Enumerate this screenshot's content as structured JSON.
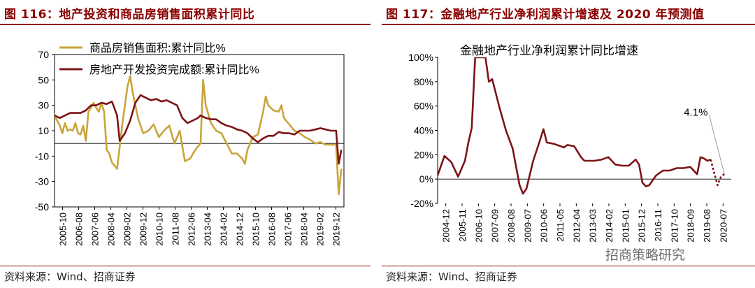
{
  "panel1": {
    "title": "图 116：地产投资和商品房销售面积累计同比",
    "source": "资料来源：Wind、招商证券"
  },
  "panel2": {
    "title": "图 117：金融地产行业净利润累计增速及 2020 年预测值",
    "source": "资料来源：Wind、招商证券",
    "watermark": "招商策略研究"
  },
  "colors": {
    "gold": "#c9a43a",
    "darkred": "#7b1418",
    "title": "#8b0000"
  },
  "chart_data": [
    {
      "type": "line",
      "title": "",
      "ylim": [
        -50,
        70
      ],
      "yticks": [
        -50,
        -30,
        -10,
        10,
        30,
        50,
        70
      ],
      "xticks": [
        "2005-10",
        "2006-08",
        "2007-06",
        "2008-04",
        "2009-02",
        "2009-12",
        "2010-10",
        "2011-08",
        "2012-06",
        "2013-04",
        "2014-02",
        "2014-12",
        "2015-10",
        "2016-08",
        "2017-06",
        "2018-04",
        "2019-02",
        "2019-12"
      ],
      "legend": {
        "placement": "top-left"
      },
      "series": [
        {
          "name": "商品房销售面积:累计同比%",
          "color": "gold",
          "values": [
            [
              0,
              22
            ],
            [
              2,
              14
            ],
            [
              3,
              8
            ],
            [
              4,
              16
            ],
            [
              5,
              10
            ],
            [
              6,
              11
            ],
            [
              7,
              10
            ],
            [
              8,
              16
            ],
            [
              9,
              8
            ],
            [
              10,
              7
            ],
            [
              11,
              14
            ],
            [
              12,
              2
            ],
            [
              13,
              25
            ],
            [
              14,
              28
            ],
            [
              15,
              32
            ],
            [
              16,
              28
            ],
            [
              17,
              25
            ],
            [
              18,
              32
            ],
            [
              19,
              25
            ],
            [
              20,
              -5
            ],
            [
              21,
              -8
            ],
            [
              22,
              -15
            ],
            [
              24,
              -20
            ],
            [
              26,
              15
            ],
            [
              28,
              45
            ],
            [
              29,
              53
            ],
            [
              30,
              40
            ],
            [
              32,
              20
            ],
            [
              34,
              8
            ],
            [
              36,
              10
            ],
            [
              38,
              15
            ],
            [
              40,
              5
            ],
            [
              42,
              10
            ],
            [
              44,
              14
            ],
            [
              46,
              0
            ],
            [
              48,
              10
            ],
            [
              50,
              -14
            ],
            [
              52,
              -12
            ],
            [
              54,
              -5
            ],
            [
              56,
              0
            ],
            [
              57,
              50
            ],
            [
              58,
              30
            ],
            [
              60,
              16
            ],
            [
              62,
              10
            ],
            [
              64,
              8
            ],
            [
              66,
              0
            ],
            [
              68,
              -8
            ],
            [
              70,
              -8
            ],
            [
              72,
              -12
            ],
            [
              73,
              -16
            ],
            [
              74,
              -5
            ],
            [
              76,
              5
            ],
            [
              78,
              7
            ],
            [
              80,
              25
            ],
            [
              81,
              37
            ],
            [
              82,
              30
            ],
            [
              84,
              26
            ],
            [
              86,
              25
            ],
            [
              87,
              30
            ],
            [
              88,
              20
            ],
            [
              90,
              15
            ],
            [
              92,
              10
            ],
            [
              94,
              8
            ],
            [
              96,
              5
            ],
            [
              98,
              3
            ],
            [
              100,
              0
            ],
            [
              102,
              1
            ],
            [
              104,
              -1
            ],
            [
              106,
              -1
            ],
            [
              108,
              -1
            ],
            [
              109,
              -40
            ],
            [
              110,
              -20
            ]
          ]
        },
        {
          "name": "房地产开发投资完成额:累计同比%",
          "color": "darkred",
          "values": [
            [
              0,
              22
            ],
            [
              2,
              20
            ],
            [
              4,
              22
            ],
            [
              6,
              24
            ],
            [
              8,
              24
            ],
            [
              10,
              24
            ],
            [
              12,
              26
            ],
            [
              14,
              30
            ],
            [
              16,
              30
            ],
            [
              18,
              32
            ],
            [
              20,
              31
            ],
            [
              22,
              33
            ],
            [
              24,
              22
            ],
            [
              25,
              2
            ],
            [
              27,
              8
            ],
            [
              29,
              18
            ],
            [
              31,
              32
            ],
            [
              33,
              38
            ],
            [
              35,
              36
            ],
            [
              37,
              34
            ],
            [
              39,
              35
            ],
            [
              41,
              33
            ],
            [
              43,
              34
            ],
            [
              45,
              32
            ],
            [
              47,
              30
            ],
            [
              49,
              20
            ],
            [
              51,
              16
            ],
            [
              53,
              18
            ],
            [
              55,
              20
            ],
            [
              56,
              22
            ],
            [
              58,
              20
            ],
            [
              60,
              19
            ],
            [
              62,
              19
            ],
            [
              64,
              16
            ],
            [
              66,
              14
            ],
            [
              68,
              13
            ],
            [
              70,
              11
            ],
            [
              72,
              10
            ],
            [
              74,
              8
            ],
            [
              76,
              4
            ],
            [
              78,
              1
            ],
            [
              80,
              4
            ],
            [
              82,
              6
            ],
            [
              84,
              6
            ],
            [
              86,
              9
            ],
            [
              88,
              8
            ],
            [
              90,
              8
            ],
            [
              92,
              7
            ],
            [
              94,
              10
            ],
            [
              96,
              10
            ],
            [
              98,
              10
            ],
            [
              100,
              11
            ],
            [
              102,
              12
            ],
            [
              104,
              11
            ],
            [
              106,
              10
            ],
            [
              108,
              10
            ],
            [
              109,
              -16
            ],
            [
              110,
              -5
            ]
          ]
        }
      ]
    },
    {
      "type": "line",
      "title": "",
      "annotation_title": "金融地产行业净利润累计同比增速",
      "ylim": [
        -20,
        100
      ],
      "yticks": [
        "-20%",
        "0%",
        "20%",
        "40%",
        "60%",
        "80%",
        "100%"
      ],
      "xticks": [
        "2004-12",
        "2005-11",
        "2006-10",
        "2007-09",
        "2008-08",
        "2009-07",
        "2010-06",
        "2011-05",
        "2012-04",
        "2013-03",
        "2014-02",
        "2015-01",
        "2015-12",
        "2016-11",
        "2017-10",
        "2018-09",
        "2019-08",
        "2020-07"
      ],
      "annotation": "4.1%",
      "series": [
        {
          "name": "金融地产行业净利润累计同比增速",
          "color": "darkred",
          "values": [
            [
              0,
              3
            ],
            [
              2,
              19
            ],
            [
              4,
              14
            ],
            [
              6,
              2
            ],
            [
              8,
              15
            ],
            [
              9,
              30
            ],
            [
              10,
              42
            ],
            [
              11,
              100
            ],
            [
              12,
              100
            ],
            [
              14,
              100
            ],
            [
              15,
              80
            ],
            [
              16,
              82
            ],
            [
              18,
              60
            ],
            [
              20,
              40
            ],
            [
              22,
              25
            ],
            [
              24,
              -5
            ],
            [
              25,
              -12
            ],
            [
              26,
              -8
            ],
            [
              28,
              15
            ],
            [
              30,
              32
            ],
            [
              31,
              41
            ],
            [
              32,
              30
            ],
            [
              34,
              29
            ],
            [
              36,
              27
            ],
            [
              37,
              26
            ],
            [
              38,
              28
            ],
            [
              40,
              27
            ],
            [
              42,
              18
            ],
            [
              43,
              15
            ],
            [
              44,
              15
            ],
            [
              46,
              15
            ],
            [
              48,
              16
            ],
            [
              50,
              18
            ],
            [
              52,
              12
            ],
            [
              54,
              11
            ],
            [
              56,
              11
            ],
            [
              58,
              16
            ],
            [
              59,
              12
            ],
            [
              60,
              -3
            ],
            [
              61,
              -6
            ],
            [
              62,
              -5
            ],
            [
              64,
              3
            ],
            [
              66,
              7
            ],
            [
              68,
              7
            ],
            [
              70,
              9
            ],
            [
              72,
              9
            ],
            [
              74,
              10
            ],
            [
              76,
              4
            ],
            [
              77,
              18
            ],
            [
              78,
              17
            ],
            [
              79,
              15
            ],
            [
              80,
              16
            ]
          ]
        },
        {
          "name": "",
          "color": "darkred",
          "dashed": true,
          "values": [
            [
              80,
              16
            ],
            [
              81,
              5
            ],
            [
              82,
              -5
            ],
            [
              83,
              2
            ],
            [
              84,
              4.1
            ]
          ]
        }
      ]
    }
  ]
}
